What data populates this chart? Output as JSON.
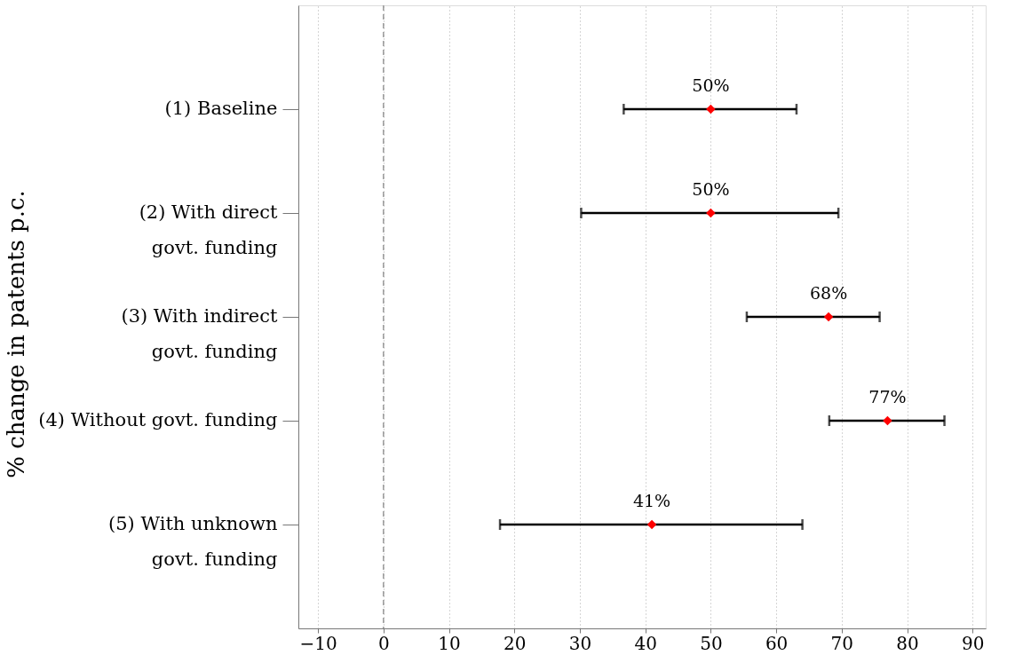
{
  "chart_data": {
    "type": "scatter",
    "orientation": "horizontal",
    "ylabel": "% change in patents p.c.",
    "categories": [
      "(1) Baseline",
      "(2) With direct\ngovt. funding",
      "(3) With indirect\ngovt. funding",
      "(4) Without govt. funding",
      "(5) With unknown\ngovt. funding"
    ],
    "values": [
      50,
      50,
      68,
      77,
      41
    ],
    "errors": [
      [
        36.7,
        63.1
      ],
      [
        30.2,
        69.5
      ],
      [
        55.5,
        75.8
      ],
      [
        68.1,
        85.7
      ],
      [
        17.8,
        64.0
      ]
    ],
    "value_labels": [
      "50%",
      "50%",
      "68%",
      "77%",
      "41%"
    ],
    "color": "#ff0000",
    "marker": "diamond",
    "xlim": [
      -13,
      92
    ],
    "xticks": [
      -10,
      0,
      10,
      20,
      30,
      40,
      50,
      60,
      70,
      80,
      90
    ],
    "grid": "x",
    "ref_lines": [
      {
        "axis": "x",
        "value": 0,
        "color": "#999999",
        "line_style": "dashed"
      }
    ]
  }
}
